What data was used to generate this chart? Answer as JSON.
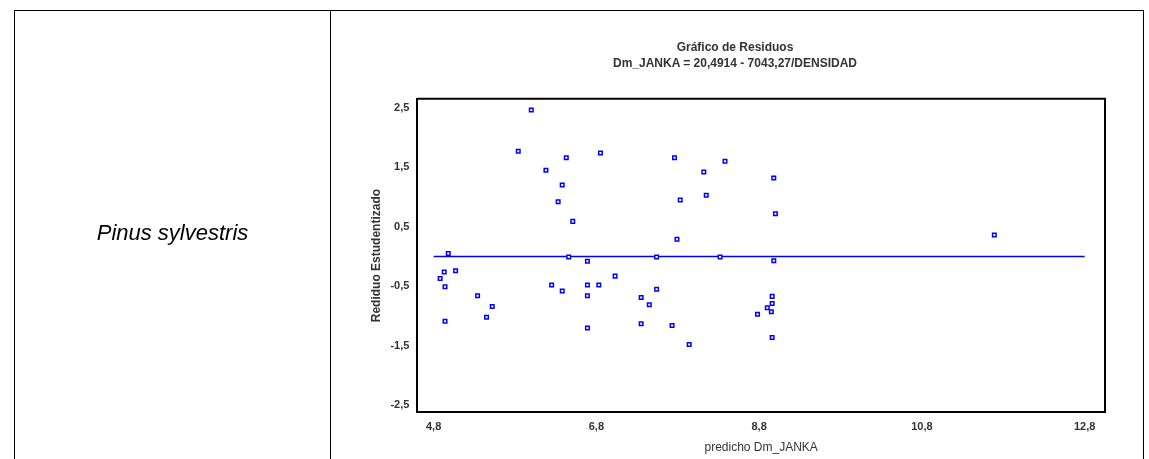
{
  "chart_data": {
    "type": "scatter",
    "title": "Gráfico de Residuos",
    "subtitle": "Dm_JANKA = 20,4914 - 7043,27/DENSIDAD",
    "xlabel": "predicho Dm_JANKA",
    "ylabel": "Rediduo Estudentizado",
    "annotations": [
      "Pinus sylvestris"
    ],
    "marker": "square",
    "grid": false,
    "legend": false,
    "xlim": [
      4.6,
      13.05
    ],
    "ylim": [
      -2.62,
      2.65
    ],
    "xticks": [
      {
        "value": 4.8,
        "label": "4,8"
      },
      {
        "value": 6.8,
        "label": "6,8"
      },
      {
        "value": 8.8,
        "label": "8,8"
      },
      {
        "value": 10.8,
        "label": "10,8"
      },
      {
        "value": 12.8,
        "label": "12,8"
      }
    ],
    "yticks": [
      {
        "value": -2.5,
        "label": "-2,5"
      },
      {
        "value": -1.5,
        "label": "-1,5"
      },
      {
        "value": -0.5,
        "label": "-0,5"
      },
      {
        "value": 0.5,
        "label": "0,5"
      },
      {
        "value": 1.5,
        "label": "1,5"
      },
      {
        "value": 2.5,
        "label": "2,5"
      }
    ],
    "series": [
      {
        "type": "scatter",
        "color": "#0000ff",
        "x": [
          6.0,
          5.84,
          6.18,
          6.43,
          6.38,
          6.33,
          6.51,
          6.85,
          7.76,
          7.83,
          8.12,
          8.15,
          8.38,
          7.79,
          4.98,
          6.46,
          6.69,
          7.54,
          8.32,
          4.88,
          4.93,
          4.94,
          5.07,
          4.94,
          5.34,
          5.52,
          5.45,
          6.25,
          6.38,
          6.69,
          6.69,
          6.83,
          7.03,
          6.69,
          7.35,
          7.45,
          7.54,
          7.35,
          7.73,
          7.94,
          8.98,
          9.0,
          8.98,
          8.96,
          8.96,
          8.9,
          8.95,
          8.78,
          8.96,
          11.69
        ],
        "values": [
          2.46,
          1.77,
          1.45,
          1.66,
          1.2,
          0.92,
          0.59,
          1.74,
          1.66,
          0.95,
          1.42,
          1.03,
          1.6,
          0.29,
          0.05,
          -0.01,
          -0.08,
          -0.01,
          -0.01,
          -0.37,
          -0.26,
          -0.51,
          -0.24,
          -1.09,
          -0.66,
          -0.84,
          -1.02,
          -0.48,
          -0.58,
          -0.48,
          -0.66,
          -0.48,
          -0.33,
          -1.2,
          -0.69,
          -0.81,
          -0.55,
          -1.13,
          -1.16,
          -1.48,
          1.32,
          0.72,
          -0.07,
          -0.67,
          -0.79,
          -0.86,
          -0.93,
          -0.97,
          -1.36,
          0.36
        ]
      },
      {
        "type": "line",
        "color": "#0000ff",
        "x": [
          4.8,
          12.8
        ],
        "values": [
          0,
          0
        ],
        "line_style": "solid",
        "marker": "none"
      }
    ]
  }
}
